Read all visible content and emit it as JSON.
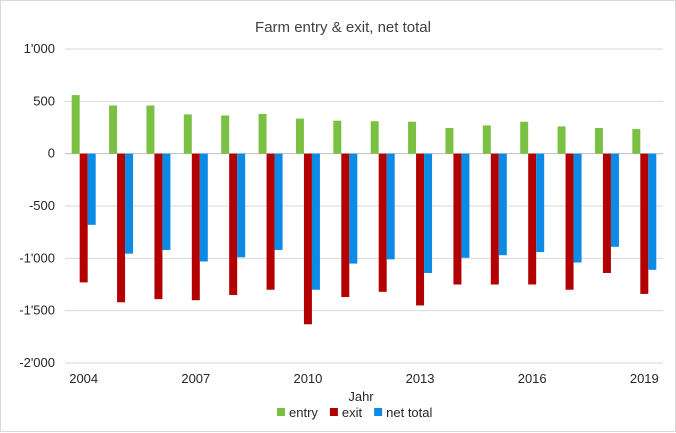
{
  "chart_data": {
    "type": "bar",
    "title": "Farm entry & exit, net total",
    "xlabel": "Jahr",
    "ylabel": "",
    "ylim": [
      -2000,
      1000
    ],
    "y_ticks": [
      1000,
      500,
      0,
      -500,
      -1000,
      -1500,
      -2000
    ],
    "y_tick_labels": [
      "1'000",
      "500",
      "0",
      "-500",
      "-1'000",
      "-1'500",
      "-2'000"
    ],
    "categories": [
      "2004",
      "2005",
      "2006",
      "2007",
      "2008",
      "2009",
      "2010",
      "2011",
      "2012",
      "2013",
      "2014",
      "2015",
      "2016",
      "2017",
      "2018",
      "2019"
    ],
    "x_tick_labels": [
      "2004",
      "",
      "",
      "2007",
      "",
      "",
      "2010",
      "",
      "",
      "2013",
      "",
      "",
      "2016",
      "",
      "",
      "2019"
    ],
    "grid": true,
    "legend_position": "bottom",
    "series": [
      {
        "name": "entry",
        "color": "#7ac143",
        "values": [
          560,
          460,
          460,
          375,
          365,
          380,
          335,
          315,
          310,
          305,
          245,
          270,
          305,
          260,
          245,
          235
        ]
      },
      {
        "name": "exit",
        "color": "#b30000",
        "values": [
          -1230,
          -1420,
          -1390,
          -1400,
          -1350,
          -1300,
          -1630,
          -1370,
          -1320,
          -1450,
          -1250,
          -1250,
          -1250,
          -1300,
          -1140,
          -1340
        ]
      },
      {
        "name": "net total",
        "color": "#0b8be6",
        "values": [
          -680,
          -955,
          -920,
          -1030,
          -990,
          -920,
          -1300,
          -1050,
          -1010,
          -1140,
          -995,
          -970,
          -940,
          -1040,
          -890,
          -1110
        ]
      }
    ]
  }
}
